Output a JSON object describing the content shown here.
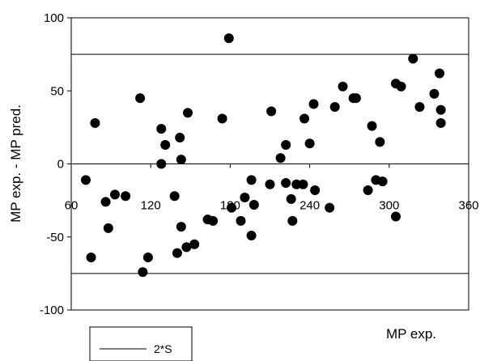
{
  "chart_data": {
    "type": "scatter",
    "xlabel": "MP exp.",
    "ylabel": "MP exp. - MP pred.",
    "xlim": [
      60,
      360
    ],
    "ylim": [
      -100,
      100
    ],
    "x_ticks": [
      "60",
      "120",
      "180",
      "240",
      "300",
      "360"
    ],
    "y_ticks": [
      "100",
      "50",
      "0",
      "-50",
      "-100"
    ],
    "grid": false,
    "reference_lines": {
      "values": [
        75,
        -75
      ],
      "legend_label": "2*S"
    },
    "legend": {
      "position": "bottom-left",
      "entries": [
        "2*S"
      ]
    },
    "series": [
      {
        "marker": "circle",
        "color": "#000000",
        "points": [
          [
            71,
            -11
          ],
          [
            75,
            -64
          ],
          [
            78,
            28
          ],
          [
            86,
            -26
          ],
          [
            88,
            -44
          ],
          [
            93,
            -21
          ],
          [
            101,
            -22
          ],
          [
            112,
            45
          ],
          [
            114,
            -74
          ],
          [
            118,
            -64
          ],
          [
            128,
            24
          ],
          [
            128,
            0
          ],
          [
            131,
            13
          ],
          [
            138,
            -22
          ],
          [
            140,
            -61
          ],
          [
            142,
            18
          ],
          [
            143,
            -43
          ],
          [
            143,
            3
          ],
          [
            147,
            -57
          ],
          [
            148,
            35
          ],
          [
            153,
            -55
          ],
          [
            163,
            -38
          ],
          [
            167,
            -39
          ],
          [
            174,
            31
          ],
          [
            179,
            86
          ],
          [
            181,
            -30
          ],
          [
            188,
            -39
          ],
          [
            191,
            -23
          ],
          [
            196,
            -49
          ],
          [
            196,
            -11
          ],
          [
            198,
            -28
          ],
          [
            210,
            -14
          ],
          [
            211,
            36
          ],
          [
            218,
            4
          ],
          [
            222,
            13
          ],
          [
            222,
            -13
          ],
          [
            226,
            -24
          ],
          [
            227,
            -39
          ],
          [
            230,
            -14
          ],
          [
            235,
            -14
          ],
          [
            236,
            31
          ],
          [
            240,
            14
          ],
          [
            243,
            41
          ],
          [
            244,
            -18
          ],
          [
            255,
            -30
          ],
          [
            259,
            39
          ],
          [
            265,
            53
          ],
          [
            273,
            45
          ],
          [
            275,
            45
          ],
          [
            284,
            -18
          ],
          [
            287,
            26
          ],
          [
            290,
            -11
          ],
          [
            293,
            15
          ],
          [
            295,
            -12
          ],
          [
            305,
            55
          ],
          [
            305,
            -36
          ],
          [
            309,
            53
          ],
          [
            318,
            72
          ],
          [
            323,
            39
          ],
          [
            334,
            48
          ],
          [
            338,
            62
          ],
          [
            339,
            37
          ],
          [
            339,
            28
          ]
        ]
      }
    ]
  }
}
